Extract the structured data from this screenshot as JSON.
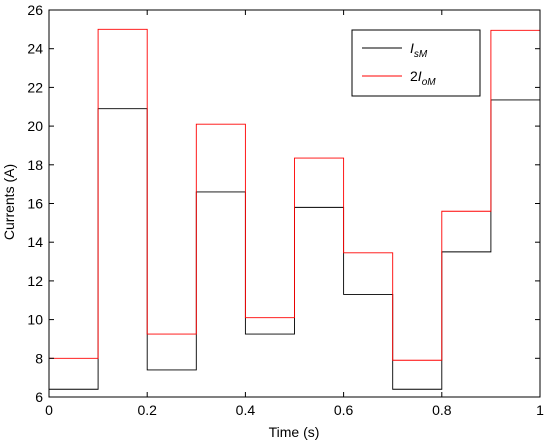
{
  "chart_data": {
    "type": "line",
    "step": "post",
    "title": "",
    "xlabel": "Time (s)",
    "ylabel": "Currents (A)",
    "xlim": [
      0,
      1
    ],
    "ylim": [
      6,
      26
    ],
    "xticks": [
      "0",
      "0.2",
      "0.4",
      "0.6",
      "0.8",
      "1"
    ],
    "yticks": [
      "6",
      "8",
      "10",
      "12",
      "14",
      "16",
      "18",
      "20",
      "22",
      "24",
      "26"
    ],
    "grid": false,
    "legend_position": "top-right",
    "series": [
      {
        "name": "IsM",
        "legend": {
          "main": "I",
          "sub": "sM"
        },
        "color": "#000000",
        "x": [
          0,
          0.1,
          0.2,
          0.3,
          0.4,
          0.5,
          0.6,
          0.7,
          0.8,
          0.9,
          1.0
        ],
        "y": [
          6.4,
          20.9,
          7.4,
          16.6,
          9.25,
          15.8,
          11.3,
          6.4,
          13.5,
          21.35,
          21.35
        ]
      },
      {
        "name": "2IoM",
        "legend": {
          "pre": "2",
          "main": "I",
          "sub": "oM"
        },
        "color": "#ff0000",
        "x": [
          0,
          0.1,
          0.2,
          0.3,
          0.4,
          0.5,
          0.6,
          0.7,
          0.8,
          0.9,
          1.0
        ],
        "y": [
          8.0,
          25.0,
          9.25,
          20.1,
          10.1,
          18.35,
          13.45,
          7.9,
          15.6,
          24.95,
          24.95
        ]
      }
    ]
  }
}
